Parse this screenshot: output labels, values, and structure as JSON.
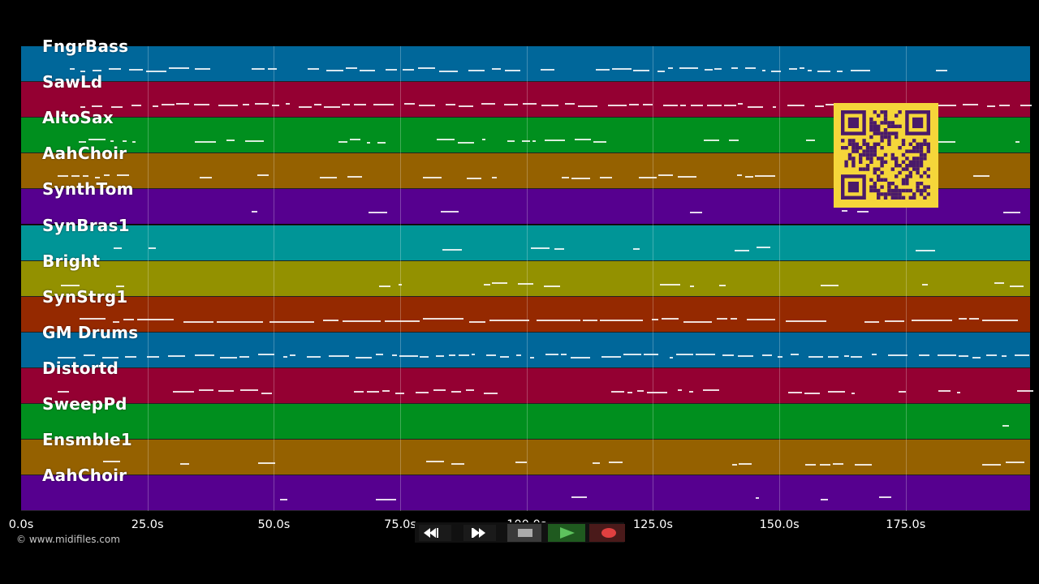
{
  "tracks": [
    {
      "name": "FngrBass",
      "color": "#00679a"
    },
    {
      "name": "SawLd",
      "color": "#940032"
    },
    {
      "name": "AltoSax",
      "color": "#008f1e"
    },
    {
      "name": "AahChoir",
      "color": "#956100"
    },
    {
      "name": "SynthTom",
      "color": "#56008f"
    },
    {
      "name": "SynBras1",
      "color": "#009597"
    },
    {
      "name": "Bright",
      "color": "#939100"
    },
    {
      "name": "SynStrg1",
      "color": "#952900"
    },
    {
      "name": "GM Drums",
      "color": "#00679a"
    },
    {
      "name": "Distortd",
      "color": "#940032"
    },
    {
      "name": "SweepPd",
      "color": "#008f1e"
    },
    {
      "name": "Ensmble1",
      "color": "#956100"
    },
    {
      "name": "AahChoir",
      "color": "#56008f"
    }
  ],
  "time_axis": {
    "ticks": [
      "0.0s",
      "25.0s",
      "50.0s",
      "75.0s",
      "100.0s",
      "125.0s",
      "150.0s",
      "175.0s"
    ],
    "tick_seconds": [
      0,
      25,
      50,
      75,
      100,
      125,
      150,
      175
    ],
    "max_seconds": 199.6
  },
  "copyright": "© www.midifiles.com",
  "controls": {
    "rewind_icon": "rewind-icon",
    "fast_forward_icon": "fast-forward-icon",
    "stop_icon": "stop-icon",
    "play_icon": "play-icon",
    "record_icon": "record-icon"
  },
  "qr_code": {
    "color": "#f5d63a",
    "module_color": "#4a1a6a"
  },
  "colors": {
    "background": "#000000",
    "note": "#ffffff"
  }
}
